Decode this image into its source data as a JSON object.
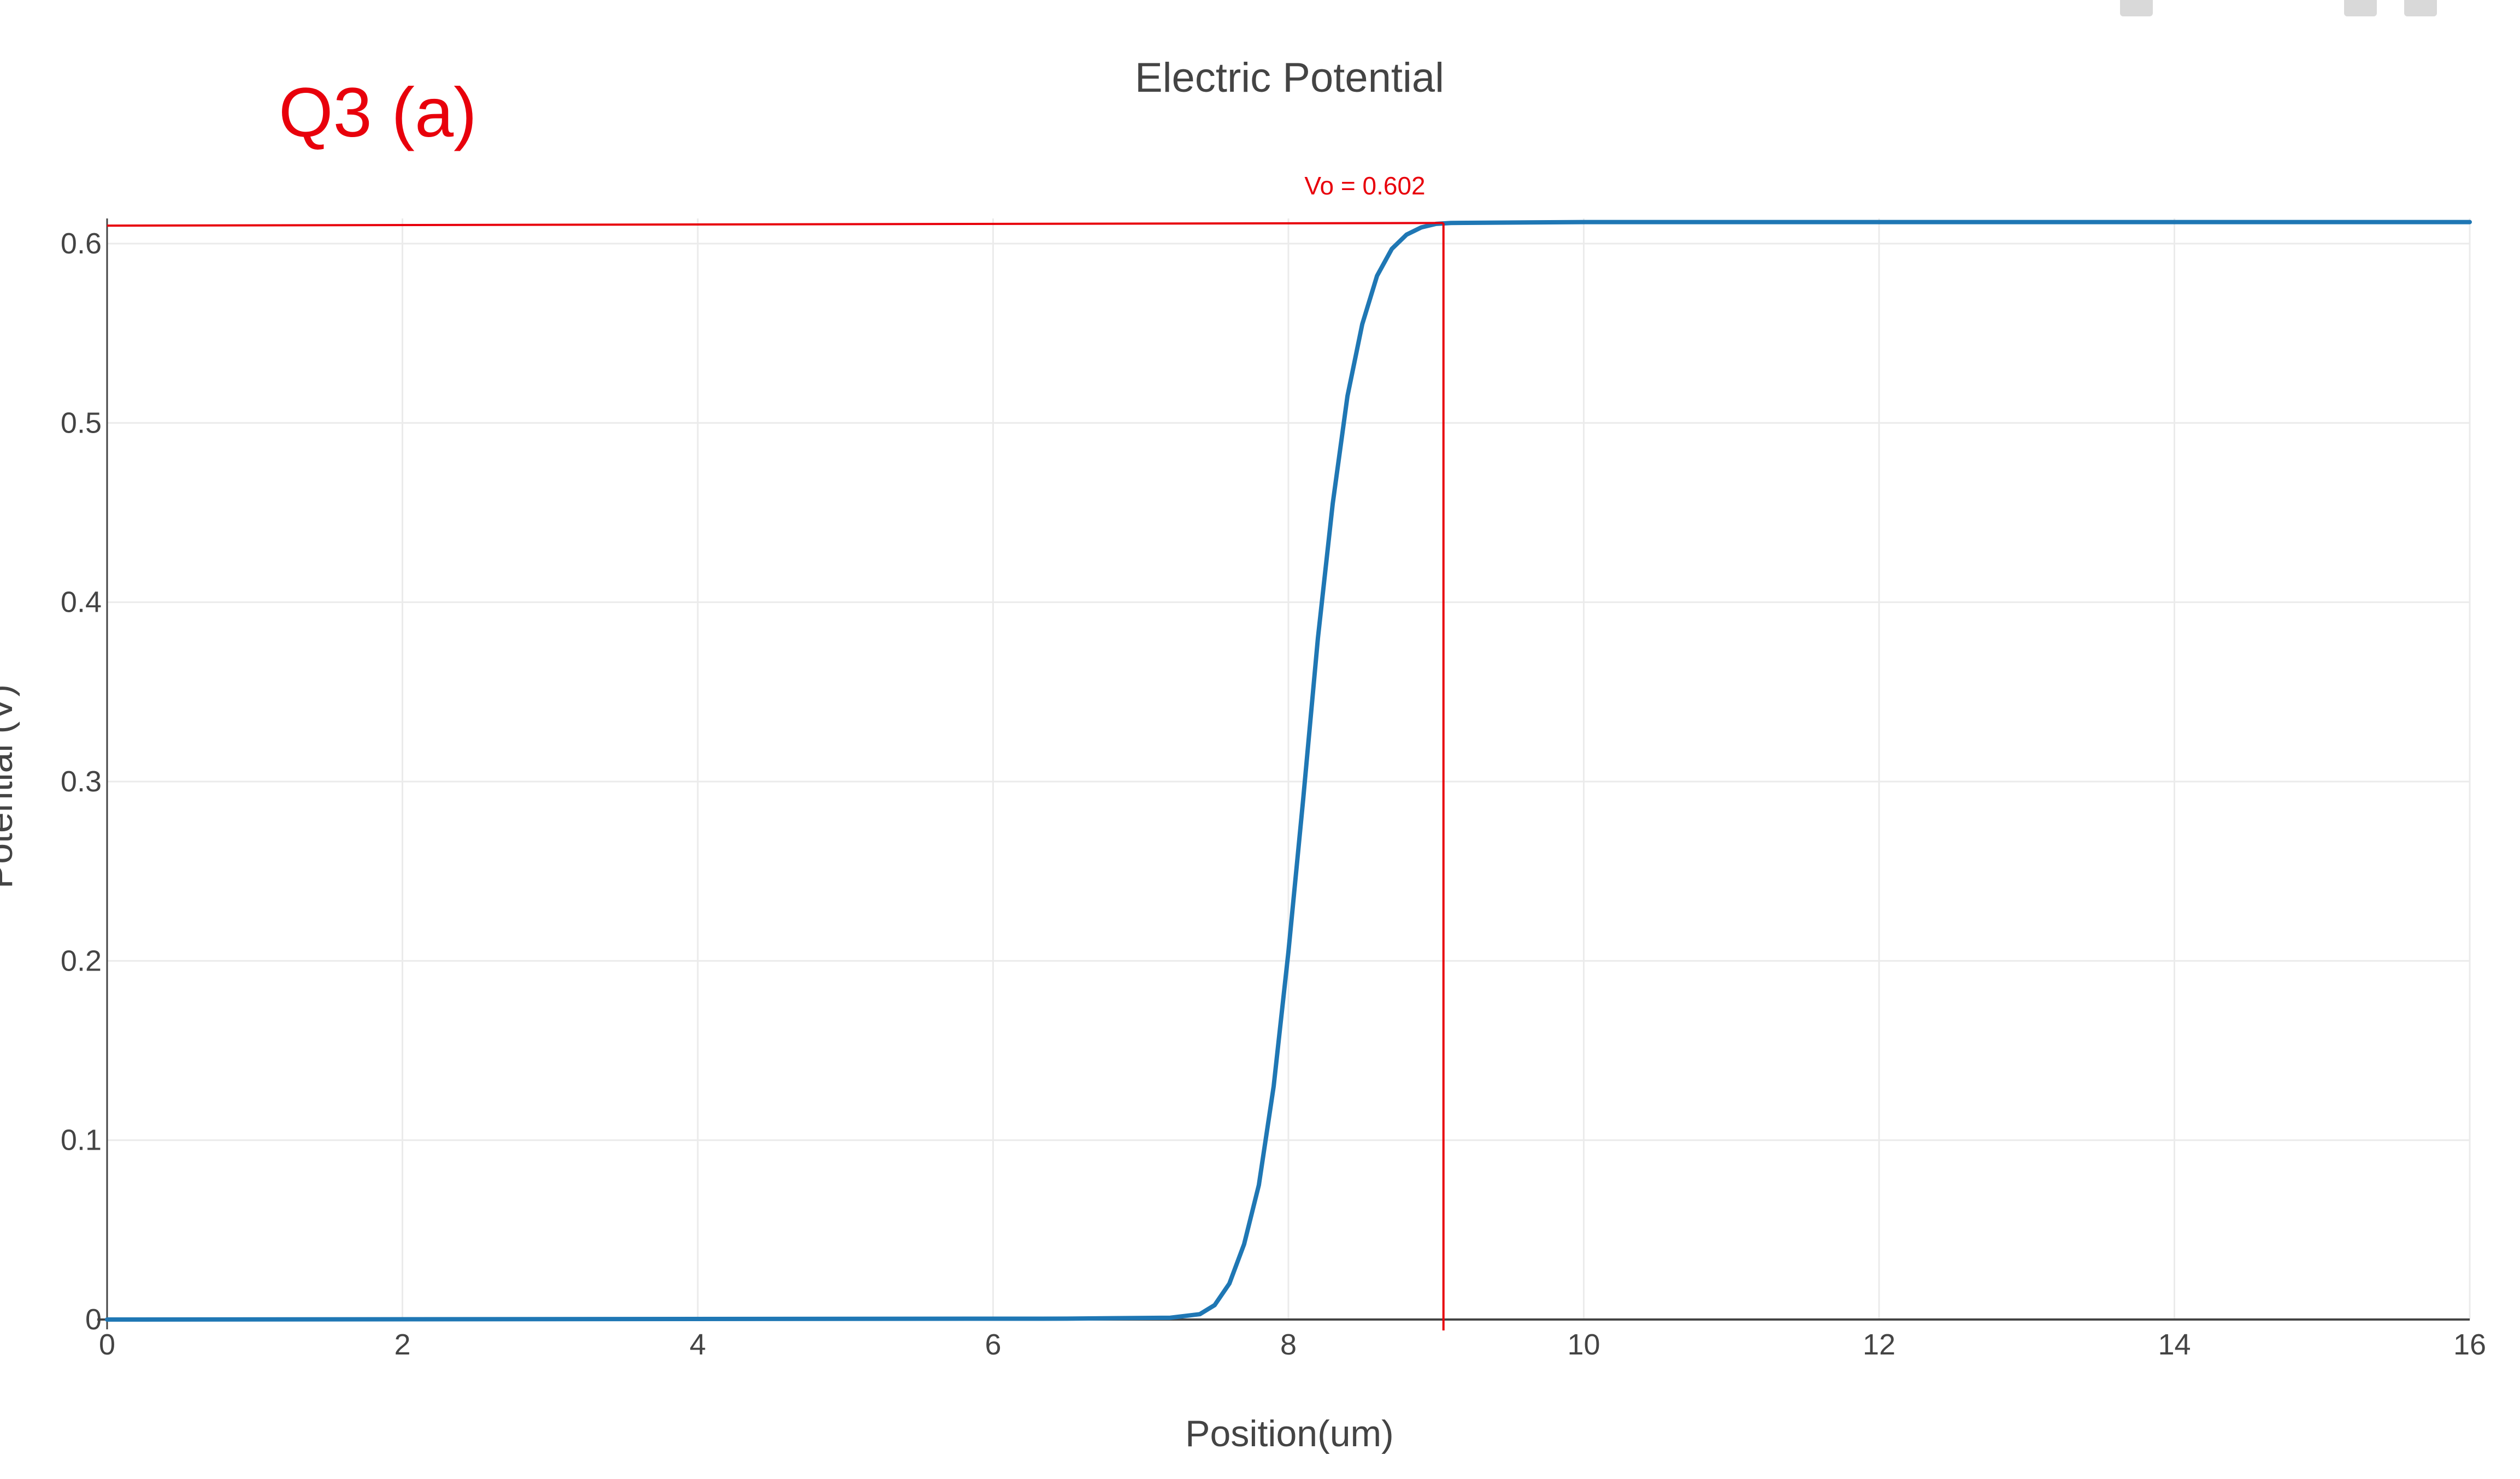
{
  "annotation": {
    "label": "Q3 (a)",
    "color": "#e8000b"
  },
  "chart_data": {
    "type": "line",
    "title": "Electric Potential",
    "xlabel": "Position(um)",
    "ylabel": "Potential (V)",
    "xlim": [
      0,
      16
    ],
    "ylim": [
      0,
      0.6
    ],
    "xticks": [
      0,
      2,
      4,
      6,
      8,
      10,
      12,
      14,
      16
    ],
    "yticks": [
      0,
      0.1,
      0.2,
      0.3,
      0.4,
      0.5,
      0.6
    ],
    "ytick_labels": [
      "0",
      "0.1",
      "0.2",
      "0.3",
      "0.4",
      "0.5",
      "0.6"
    ],
    "grid": true,
    "series": [
      {
        "color": "#1f77b4",
        "x": [
          0,
          6.5,
          7.2,
          7.4,
          7.5,
          7.6,
          7.7,
          7.8,
          7.9,
          8.0,
          8.1,
          8.2,
          8.3,
          8.4,
          8.5,
          8.6,
          8.7,
          8.8,
          8.9,
          9.0,
          9.1,
          10,
          12,
          14,
          16
        ],
        "y": [
          0,
          0.0005,
          0.001,
          0.003,
          0.008,
          0.02,
          0.042,
          0.075,
          0.13,
          0.205,
          0.29,
          0.38,
          0.455,
          0.515,
          0.555,
          0.582,
          0.597,
          0.605,
          0.609,
          0.611,
          0.6115,
          0.612,
          0.612,
          0.612,
          0.612
        ]
      }
    ],
    "reference_lines": {
      "color": "#e8000b",
      "horizontal_y": 0.61,
      "vertical_x": 9.05,
      "label": "Vo = 0.602"
    }
  }
}
